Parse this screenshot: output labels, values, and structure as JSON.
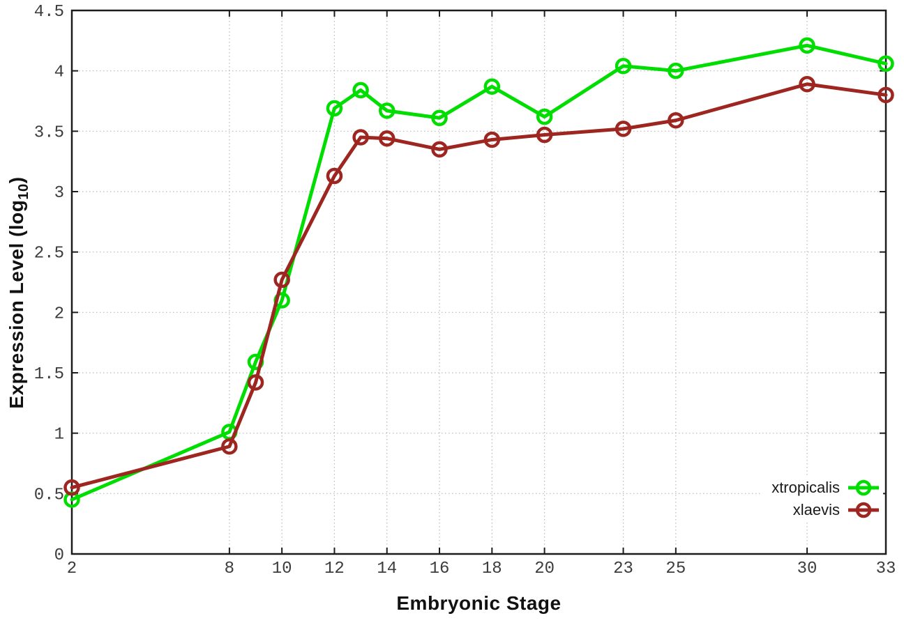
{
  "chart_data": {
    "type": "line",
    "title": "",
    "xlabel": "Embryonic Stage",
    "ylabel": "Expression Level (log10)",
    "ylabel_parts": {
      "main": "Expression Level (log",
      "sub": "10",
      "end": ")"
    },
    "x": [
      2,
      8,
      9,
      10,
      12,
      13,
      14,
      16,
      18,
      20,
      23,
      25,
      30,
      33
    ],
    "series": [
      {
        "name": "xtropicalis",
        "color": "#00dd00",
        "values": [
          0.45,
          1.01,
          1.59,
          2.1,
          3.69,
          3.84,
          3.67,
          3.61,
          3.87,
          3.62,
          4.04,
          4.0,
          4.21,
          4.06
        ]
      },
      {
        "name": "xlaevis",
        "color": "#9e2620",
        "values": [
          0.55,
          0.89,
          1.42,
          2.27,
          3.13,
          3.45,
          3.44,
          3.35,
          3.43,
          3.47,
          3.52,
          3.59,
          3.89,
          3.8
        ]
      }
    ],
    "xlim": [
      2,
      33
    ],
    "ylim": [
      0,
      4.5
    ],
    "xticks": [
      2,
      8,
      10,
      12,
      14,
      16,
      18,
      20,
      23,
      25,
      30,
      33
    ],
    "yticks": [
      0,
      0.5,
      1,
      1.5,
      2,
      2.5,
      3,
      3.5,
      4,
      4.5
    ],
    "grid": true,
    "grid_style": "dotted",
    "marker": "open-circle",
    "legend_position": "bottom-right",
    "colors": {
      "background": "#ffffff",
      "border": "#1c1c1c",
      "grid": "#b8b8b8",
      "tick_text": "#3c3c3c",
      "title_text": "#111111"
    }
  }
}
